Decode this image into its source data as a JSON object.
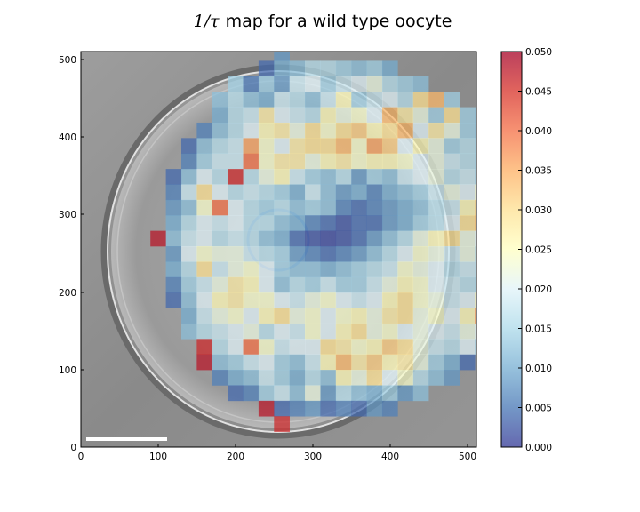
{
  "chart_data": {
    "type": "heatmap",
    "title_math": "1/τ",
    "title_text": "map for a wild type oocyte",
    "xlabel": "",
    "ylabel": "",
    "xlim": [
      0,
      512
    ],
    "ylim": [
      0,
      512
    ],
    "x_ticks": [
      "0",
      "100",
      "200",
      "300",
      "400",
      "500"
    ],
    "y_ticks": [
      "0",
      "100",
      "200",
      "300",
      "400",
      "500"
    ],
    "grid": false,
    "cell_size": 20,
    "value_range": [
      0,
      0.05
    ],
    "colorbar_ticks": [
      "0.000",
      "0.005",
      "0.010",
      "0.015",
      "0.020",
      "0.025",
      "0.030",
      "0.035",
      "0.040",
      "0.045",
      "0.050"
    ],
    "colormap": [
      "#313695",
      "#4575b4",
      "#74add1",
      "#abd9e9",
      "#e0f3f8",
      "#ffffbf",
      "#fee090",
      "#fdae61",
      "#f46d43",
      "#d73027",
      "#a50026"
    ],
    "scale_bar": true,
    "rows": [
      {
        "y0": 500,
        "x0": 250,
        "values": [
          0.008
        ]
      },
      {
        "y0": 480,
        "x0": 230,
        "values": [
          0.004,
          0.01,
          0.012,
          0.016,
          0.016,
          0.014,
          0.012,
          0.014,
          0.01
        ]
      },
      {
        "y0": 460,
        "x0": 190,
        "values": [
          0.014,
          0.005,
          0.013,
          0.008,
          0.018,
          0.02,
          0.014,
          0.018,
          0.02,
          0.022,
          0.016,
          0.014,
          0.012
        ]
      },
      {
        "y0": 440,
        "x0": 170,
        "values": [
          0.012,
          0.016,
          0.012,
          0.01,
          0.018,
          0.016,
          0.012,
          0.018,
          0.026,
          0.014,
          0.018,
          0.02,
          0.016,
          0.03,
          0.034,
          0.014
        ]
      },
      {
        "y0": 420,
        "x0": 170,
        "values": [
          0.01,
          0.016,
          0.018,
          0.028,
          0.02,
          0.018,
          0.016,
          0.026,
          0.022,
          0.024,
          0.02,
          0.034,
          0.028,
          0.022,
          0.014,
          0.03,
          0.014,
          0.012
        ]
      },
      {
        "y0": 400,
        "x0": 150,
        "values": [
          0.006,
          0.012,
          0.016,
          0.02,
          0.026,
          0.028,
          0.022,
          0.03,
          0.024,
          0.03,
          0.032,
          0.026,
          0.03,
          0.034,
          0.02,
          0.028,
          0.022,
          0.014,
          0.012,
          0.01
        ]
      },
      {
        "y0": 380,
        "x0": 130,
        "values": [
          0.004,
          0.012,
          0.016,
          0.018,
          0.036,
          0.024,
          0.02,
          0.028,
          0.03,
          0.03,
          0.034,
          0.024,
          0.036,
          0.032,
          0.02,
          0.026,
          0.022,
          0.014,
          0.016,
          0.014,
          0.012,
          0.01
        ]
      },
      {
        "y0": 360,
        "x0": 130,
        "values": [
          0.006,
          0.014,
          0.018,
          0.018,
          0.04,
          0.024,
          0.028,
          0.028,
          0.022,
          0.026,
          0.028,
          0.024,
          0.026,
          0.026,
          0.024,
          0.02,
          0.022,
          0.018,
          0.016,
          0.014,
          0.016,
          0.014
        ]
      },
      {
        "y0": 340,
        "x0": 110,
        "values": [
          0.004,
          0.012,
          0.02,
          0.016,
          0.046,
          0.016,
          0.022,
          0.026,
          0.018,
          0.014,
          0.012,
          0.016,
          0.008,
          0.014,
          0.012,
          0.018,
          0.02,
          0.022,
          0.016,
          0.018,
          0.014,
          0.016,
          0.018,
          0.006
        ]
      },
      {
        "y0": 320,
        "x0": 110,
        "values": [
          0.006,
          0.018,
          0.03,
          0.02,
          0.016,
          0.018,
          0.016,
          0.014,
          0.01,
          0.018,
          0.012,
          0.008,
          0.01,
          0.006,
          0.01,
          0.012,
          0.014,
          0.018,
          0.022,
          0.02,
          0.024,
          0.02,
          0.016,
          0.01
        ]
      },
      {
        "y0": 300,
        "x0": 110,
        "values": [
          0.008,
          0.012,
          0.024,
          0.04,
          0.02,
          0.016,
          0.014,
          0.016,
          0.012,
          0.014,
          0.012,
          0.006,
          0.004,
          0.006,
          0.008,
          0.01,
          0.012,
          0.016,
          0.018,
          0.026,
          0.032,
          0.022,
          0.018,
          0.012
        ]
      },
      {
        "y0": 280,
        "x0": 110,
        "values": [
          0.01,
          0.016,
          0.02,
          0.018,
          0.02,
          0.016,
          0.016,
          0.012,
          0.01,
          0.006,
          0.004,
          0.002,
          0.004,
          0.004,
          0.008,
          0.01,
          0.014,
          0.016,
          0.02,
          0.03,
          0.034,
          0.024,
          0.016,
          0.01
        ]
      },
      {
        "y0": 260,
        "x0": 90,
        "values": [
          0.048,
          0.012,
          0.018,
          0.02,
          0.016,
          0.018,
          0.016,
          0.012,
          0.01,
          0.004,
          0.002,
          0.001,
          0.002,
          0.004,
          0.008,
          0.012,
          0.016,
          0.022,
          0.026,
          0.03,
          0.022,
          0.02,
          0.018,
          0.012,
          0.008,
          0.01
        ]
      },
      {
        "y0": 240,
        "x0": 110,
        "values": [
          0.008,
          0.02,
          0.024,
          0.022,
          0.022,
          0.018,
          0.016,
          0.014,
          0.008,
          0.006,
          0.004,
          0.006,
          0.008,
          0.012,
          0.016,
          0.02,
          0.024,
          0.022,
          0.018,
          0.022,
          0.016,
          0.014,
          0.012,
          0.014
        ]
      },
      {
        "y0": 220,
        "x0": 110,
        "values": [
          0.01,
          0.016,
          0.03,
          0.018,
          0.022,
          0.024,
          0.02,
          0.014,
          0.012,
          0.012,
          0.01,
          0.012,
          0.014,
          0.016,
          0.018,
          0.024,
          0.022,
          0.02,
          0.016,
          0.018,
          0.016,
          0.014,
          0.018,
          0.016
        ]
      },
      {
        "y0": 200,
        "x0": 110,
        "values": [
          0.006,
          0.014,
          0.018,
          0.022,
          0.028,
          0.026,
          0.02,
          0.012,
          0.016,
          0.014,
          0.018,
          0.014,
          0.014,
          0.018,
          0.022,
          0.026,
          0.024,
          0.02,
          0.018,
          0.016,
          0.014,
          0.016,
          0.012,
          0.008
        ]
      },
      {
        "y0": 180,
        "x0": 110,
        "values": [
          0.004,
          0.012,
          0.02,
          0.026,
          0.028,
          0.024,
          0.024,
          0.02,
          0.018,
          0.022,
          0.024,
          0.02,
          0.018,
          0.02,
          0.026,
          0.03,
          0.024,
          0.022,
          0.018,
          0.02,
          0.026,
          0.028,
          0.014,
          0.006
        ]
      },
      {
        "y0": 160,
        "x0": 130,
        "values": [
          0.01,
          0.018,
          0.022,
          0.024,
          0.02,
          0.026,
          0.03,
          0.022,
          0.024,
          0.02,
          0.024,
          0.026,
          0.022,
          0.028,
          0.03,
          0.022,
          0.024,
          0.02,
          0.026,
          0.038,
          0.042,
          0.01
        ]
      },
      {
        "y0": 140,
        "x0": 130,
        "values": [
          0.012,
          0.016,
          0.018,
          0.02,
          0.022,
          0.016,
          0.02,
          0.018,
          0.024,
          0.02,
          0.026,
          0.03,
          0.022,
          0.024,
          0.02,
          0.022,
          0.02,
          0.018,
          0.022,
          0.02,
          0.016,
          0.01
        ]
      },
      {
        "y0": 120,
        "x0": 150,
        "values": [
          0.046,
          0.016,
          0.02,
          0.04,
          0.024,
          0.018,
          0.02,
          0.02,
          0.03,
          0.028,
          0.024,
          0.026,
          0.032,
          0.03,
          0.022,
          0.018,
          0.016,
          0.02,
          0.014,
          0.006
        ]
      },
      {
        "y0": 100,
        "x0": 150,
        "values": [
          0.048,
          0.012,
          0.014,
          0.018,
          0.02,
          0.014,
          0.012,
          0.018,
          0.026,
          0.034,
          0.028,
          0.032,
          0.026,
          0.028,
          0.022,
          0.014,
          0.01,
          0.004
        ]
      },
      {
        "y0": 80,
        "x0": 170,
        "values": [
          0.006,
          0.01,
          0.012,
          0.018,
          0.014,
          0.01,
          0.016,
          0.012,
          0.026,
          0.022,
          0.03,
          0.02,
          0.024,
          0.016,
          0.012,
          0.008
        ]
      },
      {
        "y0": 60,
        "x0": 190,
        "values": [
          0.004,
          0.006,
          0.014,
          0.018,
          0.012,
          0.022,
          0.008,
          0.016,
          0.012,
          0.01,
          0.014,
          0.008,
          0.012
        ]
      },
      {
        "y0": 40,
        "x0": 230,
        "values": [
          0.048,
          0.004,
          0.006,
          0.008,
          0.004,
          0.006,
          0.004,
          0.008,
          0.006
        ]
      },
      {
        "y0": 20,
        "x0": 250,
        "values": [
          0.046
        ]
      }
    ]
  }
}
